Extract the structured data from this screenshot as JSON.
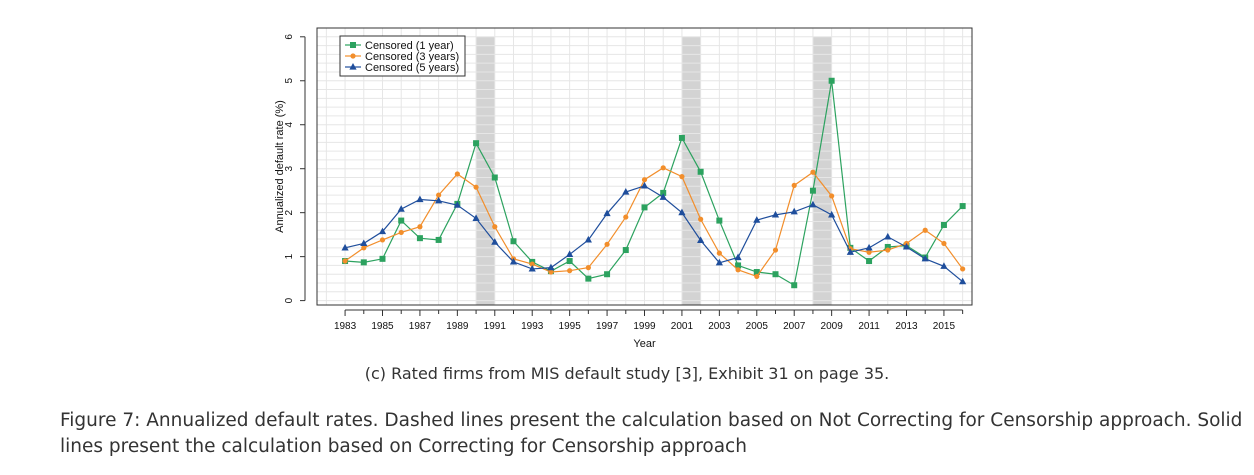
{
  "chart_data": {
    "type": "line",
    "xlabel": "Year",
    "ylabel": "Annualized default rate (%)",
    "xlim": [
      1981.5,
      2016.5
    ],
    "ylim": [
      -0.1,
      6.2
    ],
    "x_tick_labels": [
      "1983",
      "1985",
      "1987",
      "1989",
      "1991",
      "1993",
      "1995",
      "1997",
      "1999",
      "2001",
      "2003",
      "2005",
      "2007",
      "2009",
      "2011",
      "2013",
      "2015"
    ],
    "y_tick_labels": [
      "0",
      "1",
      "2",
      "3",
      "4",
      "5",
      "6"
    ],
    "grid": true,
    "legend_position": "top-left",
    "recession_bands": [
      [
        1990.0,
        1991.0
      ],
      [
        2001.0,
        2002.0
      ],
      [
        2008.0,
        2009.0
      ]
    ],
    "x": [
      1983,
      1984,
      1985,
      1986,
      1987,
      1988,
      1989,
      1990,
      1991,
      1992,
      1993,
      1994,
      1995,
      1996,
      1997,
      1998,
      1999,
      2000,
      2001,
      2002,
      2003,
      2004,
      2005,
      2006,
      2007,
      2008,
      2009,
      2010,
      2011,
      2012,
      2013,
      2014,
      2015,
      2016
    ],
    "series": [
      {
        "name": "Censored (1 year)",
        "color": "#2ca25f",
        "marker": "square",
        "values": [
          0.9,
          0.87,
          0.95,
          1.82,
          1.42,
          1.38,
          2.2,
          3.58,
          2.8,
          1.35,
          0.88,
          0.67,
          0.9,
          0.5,
          0.6,
          1.15,
          2.12,
          2.45,
          3.7,
          2.93,
          1.82,
          0.8,
          0.65,
          0.6,
          0.35,
          2.5,
          5.0,
          1.2,
          0.9,
          1.22,
          1.25,
          0.98,
          1.72,
          2.15
        ]
      },
      {
        "name": "Censored (3 years)",
        "color": "#f28e2b",
        "marker": "circle",
        "values": [
          0.9,
          1.2,
          1.38,
          1.55,
          1.68,
          2.4,
          2.88,
          2.58,
          1.68,
          0.95,
          0.83,
          0.65,
          0.68,
          0.75,
          1.28,
          1.9,
          2.75,
          3.02,
          2.82,
          1.85,
          1.08,
          0.7,
          0.55,
          1.15,
          2.62,
          2.92,
          2.38,
          1.18,
          1.1,
          1.15,
          1.3,
          1.6,
          1.3,
          0.72
        ]
      },
      {
        "name": "Censored (5 years)",
        "color": "#1f4e9c",
        "marker": "triangle",
        "values": [
          1.2,
          1.3,
          1.57,
          2.08,
          2.3,
          2.27,
          2.17,
          1.87,
          1.33,
          0.88,
          0.72,
          0.75,
          1.05,
          1.38,
          1.98,
          2.47,
          2.61,
          2.35,
          2.0,
          1.37,
          0.86,
          0.98,
          1.83,
          1.95,
          2.02,
          2.18,
          1.95,
          1.1,
          1.2,
          1.45,
          1.22,
          0.95,
          0.78,
          0.43
        ]
      }
    ]
  },
  "subcaption": "(c) Rated firms from MIS default study [3], Exhibit 31 on page 35.",
  "caption": "Figure 7: Annualized default rates. Dashed lines present the calculation based on Not Correcting for Censorship approach. Solid lines present the calculation based on Correcting for Censorship approach"
}
